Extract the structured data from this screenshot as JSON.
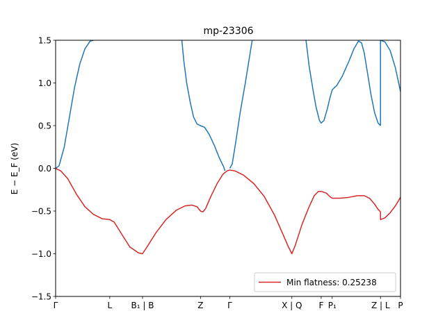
{
  "chart_data": {
    "type": "line",
    "title": "mp-23306",
    "ylabel": "E − E_F (eV)",
    "ylim": [
      -1.5,
      1.5
    ],
    "xlim": [
      0,
      1
    ],
    "grid": false,
    "legend_position": "lower-right",
    "yticks": [
      {
        "v": -1.5,
        "label": "−1.5"
      },
      {
        "v": -1.0,
        "label": "−1.0"
      },
      {
        "v": -0.5,
        "label": "−0.5"
      },
      {
        "v": 0.0,
        "label": "0.0"
      },
      {
        "v": 0.5,
        "label": "0.5"
      },
      {
        "v": 1.0,
        "label": "1.0"
      },
      {
        "v": 1.5,
        "label": "1.5"
      }
    ],
    "xticks": [
      {
        "v": 0.0,
        "label": "Γ"
      },
      {
        "v": 0.157,
        "label": "L"
      },
      {
        "v": 0.252,
        "label": "B₁ | B"
      },
      {
        "v": 0.42,
        "label": "Z"
      },
      {
        "v": 0.505,
        "label": "Γ"
      },
      {
        "v": 0.685,
        "label": "X | Q"
      },
      {
        "v": 0.77,
        "label": "F"
      },
      {
        "v": 0.802,
        "label": "P₁"
      },
      {
        "v": 0.942,
        "label": "Z | L"
      },
      {
        "v": 1.0,
        "label": "P"
      }
    ],
    "series": [
      {
        "name": "",
        "color": "#1f77b4",
        "segments": [
          [
            [
              0,
              0
            ],
            [
              0.01,
              0.03
            ],
            [
              0.025,
              0.25
            ],
            [
              0.04,
              0.6
            ],
            [
              0.055,
              0.95
            ],
            [
              0.07,
              1.22
            ],
            [
              0.085,
              1.4
            ],
            [
              0.1,
              1.49
            ],
            [
              0.11,
              1.5
            ]
          ],
          [
            [
              0.366,
              1.5
            ],
            [
              0.372,
              1.25
            ],
            [
              0.38,
              1.0
            ],
            [
              0.39,
              0.78
            ],
            [
              0.4,
              0.6
            ],
            [
              0.41,
              0.52
            ],
            [
              0.42,
              0.5
            ],
            [
              0.432,
              0.48
            ],
            [
              0.445,
              0.4
            ],
            [
              0.46,
              0.27
            ],
            [
              0.475,
              0.12
            ],
            [
              0.487,
              0.02
            ],
            [
              0.491,
              -0.03
            ]
          ],
          [
            [
              0.505,
              0.0
            ],
            [
              0.512,
              0.05
            ],
            [
              0.522,
              0.3
            ],
            [
              0.535,
              0.65
            ],
            [
              0.55,
              1.0
            ],
            [
              0.562,
              1.3
            ],
            [
              0.57,
              1.5
            ]
          ],
          [
            [
              0.726,
              1.5
            ],
            [
              0.735,
              1.2
            ],
            [
              0.745,
              0.95
            ],
            [
              0.755,
              0.72
            ],
            [
              0.765,
              0.56
            ],
            [
              0.77,
              0.53
            ],
            [
              0.778,
              0.56
            ],
            [
              0.788,
              0.7
            ],
            [
              0.795,
              0.82
            ],
            [
              0.802,
              0.92
            ],
            [
              0.815,
              0.97
            ],
            [
              0.83,
              1.07
            ],
            [
              0.85,
              1.25
            ],
            [
              0.865,
              1.4
            ],
            [
              0.878,
              1.49
            ],
            [
              0.887,
              1.47
            ],
            [
              0.895,
              1.35
            ],
            [
              0.905,
              1.1
            ],
            [
              0.915,
              0.85
            ],
            [
              0.925,
              0.65
            ],
            [
              0.935,
              0.53
            ],
            [
              0.942,
              0.5
            ]
          ],
          [
            [
              0.942,
              0.5
            ],
            [
              0.942,
              1.5
            ]
          ],
          [
            [
              0.942,
              1.5
            ],
            [
              0.955,
              1.48
            ],
            [
              0.97,
              1.38
            ],
            [
              0.985,
              1.18
            ],
            [
              1.0,
              0.9
            ]
          ]
        ]
      },
      {
        "name": "Min flatness: 0.25238",
        "color": "#d62728",
        "segments": [
          [
            [
              0,
              0
            ],
            [
              0.015,
              -0.03
            ],
            [
              0.035,
              -0.12
            ],
            [
              0.06,
              -0.3
            ],
            [
              0.085,
              -0.45
            ],
            [
              0.11,
              -0.54
            ],
            [
              0.135,
              -0.59
            ],
            [
              0.157,
              -0.6
            ],
            [
              0.17,
              -0.63
            ],
            [
              0.19,
              -0.76
            ],
            [
              0.215,
              -0.92
            ],
            [
              0.24,
              -0.99
            ],
            [
              0.252,
              -1.0
            ],
            [
              0.265,
              -0.92
            ],
            [
              0.29,
              -0.76
            ],
            [
              0.32,
              -0.6
            ],
            [
              0.35,
              -0.49
            ],
            [
              0.375,
              -0.44
            ],
            [
              0.395,
              -0.43
            ],
            [
              0.41,
              -0.45
            ],
            [
              0.42,
              -0.5
            ],
            [
              0.427,
              -0.51
            ],
            [
              0.435,
              -0.47
            ],
            [
              0.45,
              -0.33
            ],
            [
              0.468,
              -0.18
            ],
            [
              0.485,
              -0.07
            ],
            [
              0.497,
              -0.03
            ],
            [
              0.505,
              -0.02
            ],
            [
              0.52,
              -0.03
            ],
            [
              0.545,
              -0.08
            ],
            [
              0.575,
              -0.18
            ],
            [
              0.605,
              -0.33
            ],
            [
              0.635,
              -0.55
            ],
            [
              0.66,
              -0.78
            ],
            [
              0.675,
              -0.92
            ],
            [
              0.685,
              -1.0
            ],
            [
              0.695,
              -0.9
            ],
            [
              0.715,
              -0.65
            ],
            [
              0.735,
              -0.45
            ],
            [
              0.75,
              -0.32
            ],
            [
              0.762,
              -0.27
            ],
            [
              0.77,
              -0.27
            ],
            [
              0.785,
              -0.29
            ],
            [
              0.795,
              -0.33
            ],
            [
              0.802,
              -0.35
            ],
            [
              0.825,
              -0.35
            ],
            [
              0.85,
              -0.34
            ],
            [
              0.875,
              -0.32
            ],
            [
              0.895,
              -0.32
            ],
            [
              0.91,
              -0.35
            ],
            [
              0.925,
              -0.42
            ],
            [
              0.935,
              -0.48
            ],
            [
              0.942,
              -0.51
            ],
            [
              0.942,
              -0.6
            ],
            [
              0.955,
              -0.58
            ],
            [
              0.97,
              -0.52
            ],
            [
              0.985,
              -0.44
            ],
            [
              1.0,
              -0.34
            ]
          ]
        ]
      }
    ]
  }
}
